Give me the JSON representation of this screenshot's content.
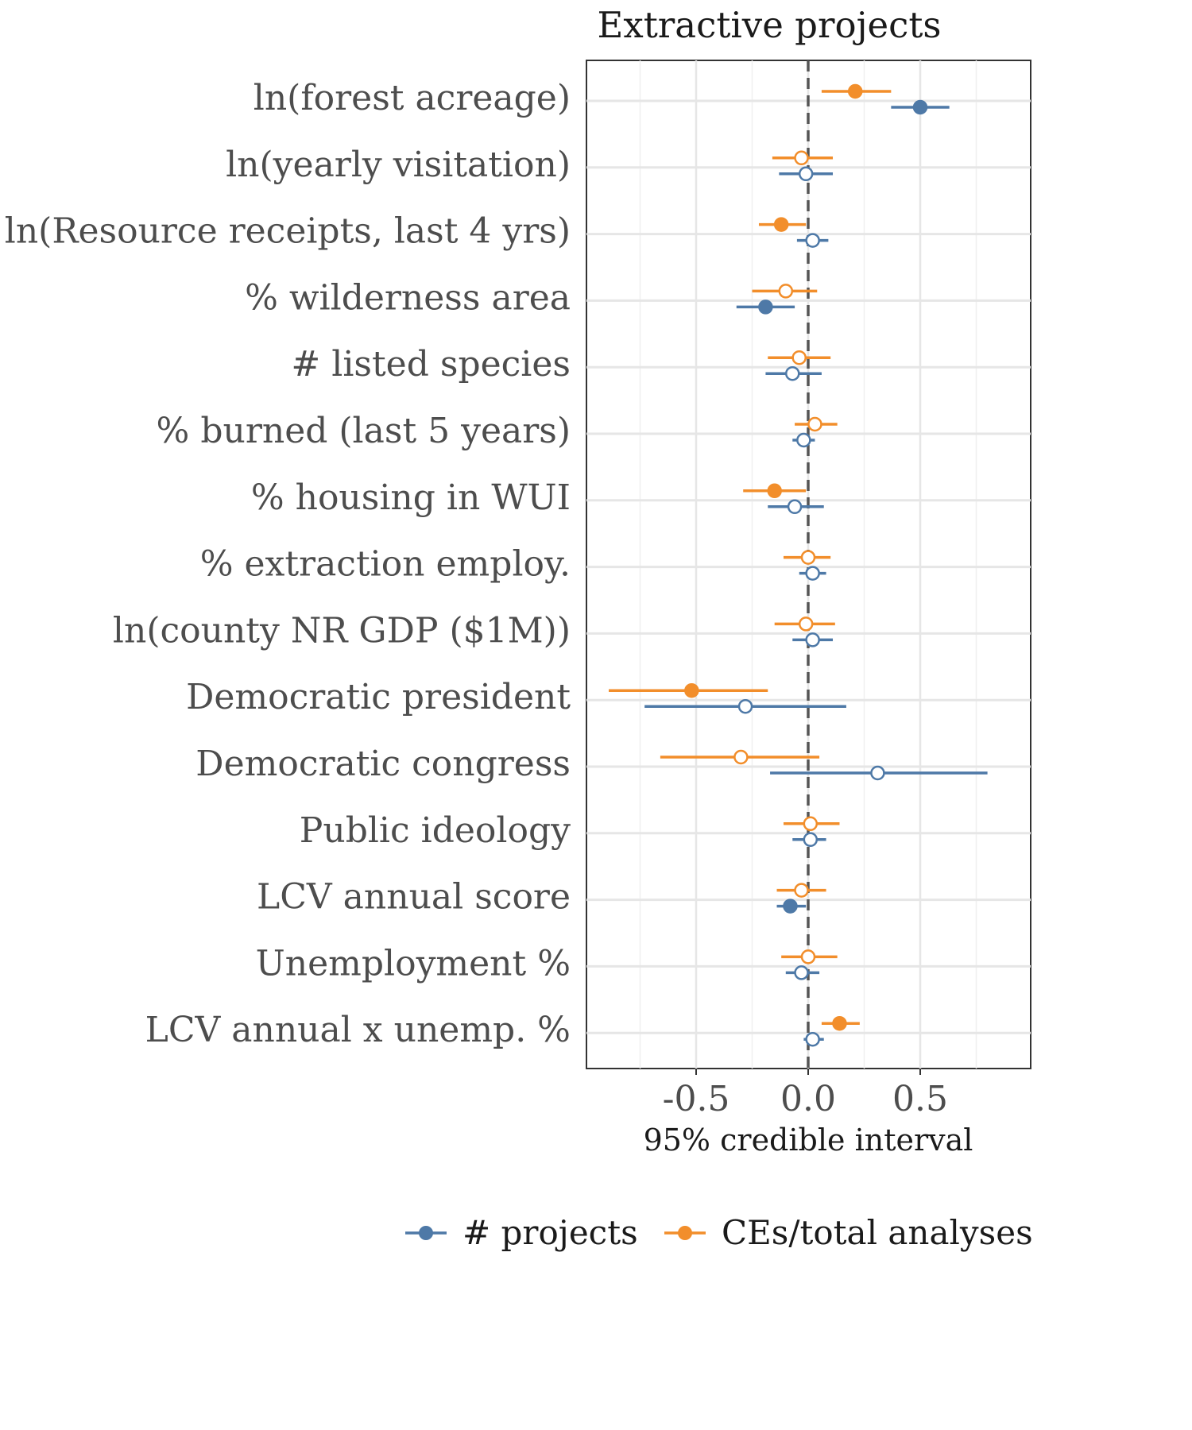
{
  "chart_data": {
    "type": "scatter",
    "title": "Extractive projects",
    "xlabel": "95% credible interval",
    "ylabel": "",
    "xlim": [
      -1.0,
      1.0
    ],
    "x_ticks": [
      -0.5,
      0.0,
      0.5
    ],
    "x_tick_labels": [
      "-0.5",
      "0.0",
      "0.5"
    ],
    "reference_line_x": 0,
    "grid": true,
    "legend_position": "bottom",
    "categories": [
      "ln(forest acreage)",
      "ln(yearly visitation)",
      "ln(Resource receipts, last 4 yrs)",
      "% wilderness area",
      "# listed species",
      "% burned (last 5 years)",
      "% housing in WUI",
      "% extraction employ.",
      "ln(county NR GDP ($1M))",
      "Democratic president",
      "Democratic congress",
      "Public ideology",
      "LCV annual score",
      "Unemployment %",
      "LCV annual x unemp. %"
    ],
    "series": [
      {
        "name": "# projects",
        "color": "#4e79a7",
        "estimate": [
          0.5,
          -0.01,
          0.02,
          -0.19,
          -0.07,
          -0.02,
          -0.06,
          0.02,
          0.02,
          -0.28,
          0.31,
          0.01,
          -0.08,
          -0.03,
          0.02
        ],
        "lower": [
          0.37,
          -0.13,
          -0.05,
          -0.32,
          -0.19,
          -0.07,
          -0.18,
          -0.04,
          -0.07,
          -0.73,
          -0.17,
          -0.07,
          -0.14,
          -0.1,
          -0.02
        ],
        "upper": [
          0.63,
          0.11,
          0.09,
          -0.06,
          0.06,
          0.03,
          0.07,
          0.08,
          0.11,
          0.17,
          0.8,
          0.08,
          -0.01,
          0.05,
          0.07
        ],
        "credible": [
          true,
          false,
          false,
          true,
          false,
          false,
          false,
          false,
          false,
          false,
          false,
          false,
          true,
          false,
          false
        ]
      },
      {
        "name": "CEs/total analyses",
        "color": "#f28e2b",
        "estimate": [
          0.21,
          -0.03,
          -0.12,
          -0.1,
          -0.04,
          0.03,
          -0.15,
          0.0,
          -0.01,
          -0.52,
          -0.3,
          0.01,
          -0.03,
          0.0,
          0.14
        ],
        "lower": [
          0.06,
          -0.16,
          -0.22,
          -0.25,
          -0.18,
          -0.06,
          -0.29,
          -0.11,
          -0.15,
          -0.89,
          -0.66,
          -0.11,
          -0.14,
          -0.12,
          0.06
        ],
        "upper": [
          0.37,
          0.11,
          -0.01,
          0.04,
          0.1,
          0.13,
          -0.01,
          0.1,
          0.12,
          -0.18,
          0.05,
          0.14,
          0.08,
          0.13,
          0.23
        ],
        "credible": [
          true,
          false,
          true,
          false,
          false,
          false,
          true,
          false,
          false,
          true,
          false,
          false,
          false,
          false,
          true
        ]
      }
    ]
  }
}
